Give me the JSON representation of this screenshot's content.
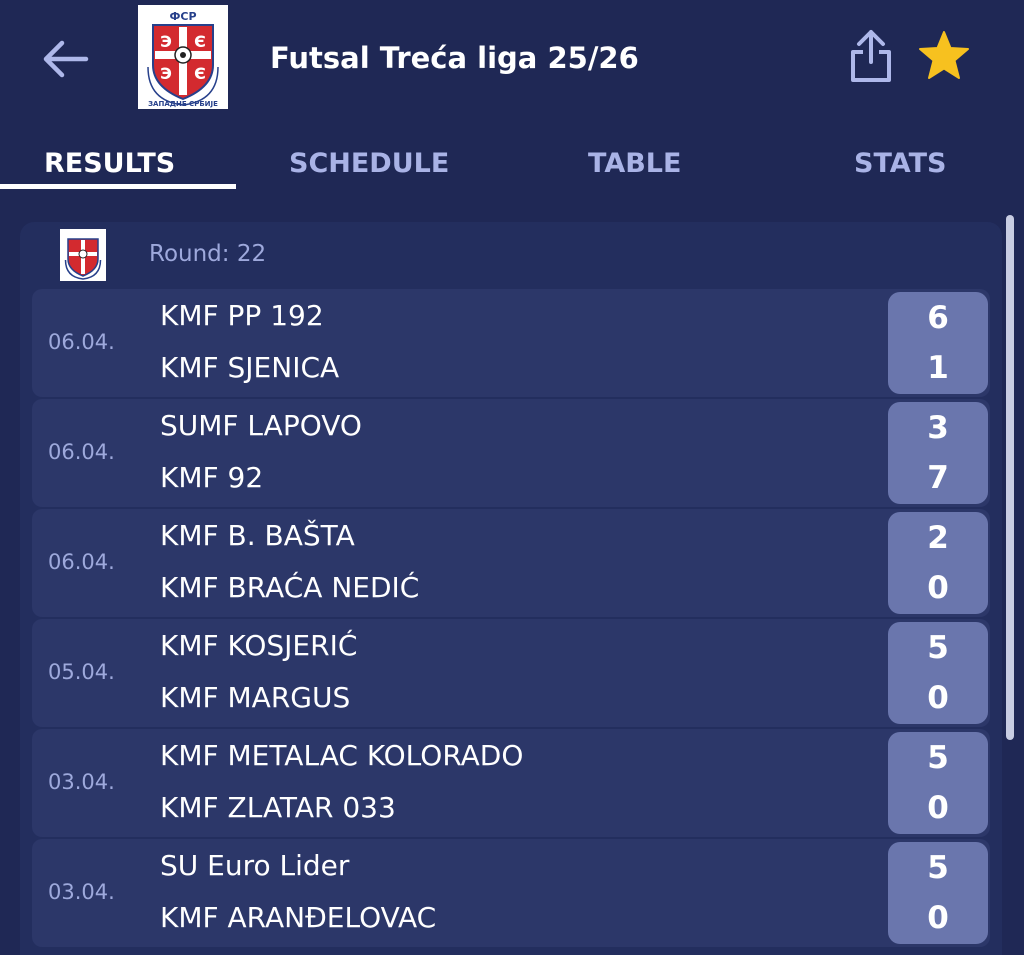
{
  "header": {
    "title": "Futsal Treća liga 25/26",
    "logo_icon": "league-crest-icon",
    "logo_text_top": "ФСР",
    "logo_text_bottom": "ЗАПАДНЕ СРБИЈЕ"
  },
  "tabs": [
    {
      "label": "RESULTS",
      "active": true
    },
    {
      "label": "SCHEDULE",
      "active": false
    },
    {
      "label": "TABLE",
      "active": false
    },
    {
      "label": "STATS",
      "active": false
    }
  ],
  "round": {
    "label": "Round: 22"
  },
  "matches": [
    {
      "date": "06.04.",
      "home": "KMF PP 192",
      "away": "KMF SJENICA",
      "home_score": "6",
      "away_score": "1"
    },
    {
      "date": "06.04.",
      "home": "SUMF LAPOVO",
      "away": "KMF 92",
      "home_score": "3",
      "away_score": "7"
    },
    {
      "date": "06.04.",
      "home": "KMF B. BAŠTA",
      "away": "KMF BRAĆA NEDIĆ",
      "home_score": "2",
      "away_score": "0"
    },
    {
      "date": "05.04.",
      "home": "KMF KOSJERIĆ",
      "away": "KMF MARGUS",
      "home_score": "5",
      "away_score": "0"
    },
    {
      "date": "03.04.",
      "home": "KMF METALAC KOLORADO",
      "away": "KMF ZLATAR 033",
      "home_score": "5",
      "away_score": "0"
    },
    {
      "date": "03.04.",
      "home": "SU Euro Lider",
      "away": "KMF ARANĐELOVAC",
      "home_score": "5",
      "away_score": "0"
    }
  ],
  "colors": {
    "background": "#1f2855",
    "panel": "#232e5e",
    "row": "#2c3769",
    "score_box": "#6a76ad",
    "tab_inactive": "#a9b3e6",
    "accent_star": "#f7c11f",
    "crest_red": "#d32a2f"
  }
}
